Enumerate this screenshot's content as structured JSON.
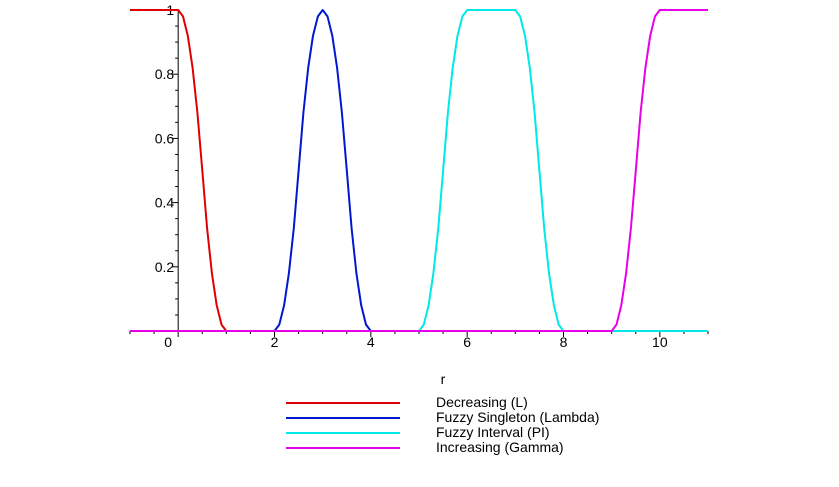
{
  "chart_data": {
    "type": "line",
    "xlabel": "r",
    "ylabel": "",
    "xlim": [
      -1,
      11
    ],
    "ylim": [
      0,
      1
    ],
    "x_ticks": [
      {
        "value": 0,
        "label": "0"
      },
      {
        "value": 2,
        "label": "2"
      },
      {
        "value": 4,
        "label": "4"
      },
      {
        "value": 6,
        "label": "6"
      },
      {
        "value": 8,
        "label": "8"
      },
      {
        "value": 10,
        "label": "10"
      }
    ],
    "y_ticks": [
      {
        "value": 0.2,
        "label": "0.2"
      },
      {
        "value": 0.4,
        "label": "0.4"
      },
      {
        "value": 0.6,
        "label": "0.6"
      },
      {
        "value": 0.8,
        "label": "0.8"
      },
      {
        "value": 1,
        "label": "1"
      }
    ],
    "grid": false,
    "legend_position": "bottom",
    "series": [
      {
        "name": "Decreasing (L)",
        "color": "#e00000",
        "x": [
          -1,
          0,
          0.1,
          0.2,
          0.3,
          0.4,
          0.5,
          0.6,
          0.7,
          0.8,
          0.9,
          1,
          2,
          3,
          4,
          5,
          6,
          7,
          8,
          9,
          10,
          11
        ],
        "y": [
          1,
          1,
          0.98,
          0.92,
          0.82,
          0.68,
          0.5,
          0.32,
          0.18,
          0.08,
          0.02,
          0,
          0,
          0,
          0,
          0,
          0,
          0,
          0,
          0,
          0,
          0
        ]
      },
      {
        "name": "Fuzzy Singleton (Lambda)",
        "color": "#0018d0",
        "x": [
          -1,
          0,
          1,
          2,
          2.1,
          2.2,
          2.3,
          2.4,
          2.5,
          2.6,
          2.7,
          2.8,
          2.9,
          3,
          3.1,
          3.2,
          3.3,
          3.4,
          3.5,
          3.6,
          3.7,
          3.8,
          3.9,
          4,
          5,
          6,
          7,
          8,
          9,
          10,
          11
        ],
        "y": [
          0,
          0,
          0,
          0,
          0.02,
          0.08,
          0.18,
          0.32,
          0.5,
          0.68,
          0.82,
          0.92,
          0.98,
          1,
          0.98,
          0.92,
          0.82,
          0.68,
          0.5,
          0.32,
          0.18,
          0.08,
          0.02,
          0,
          0,
          0,
          0,
          0,
          0,
          0,
          0
        ]
      },
      {
        "name": "Fuzzy Interval (PI)",
        "color": "#00e8e8",
        "x": [
          -1,
          0,
          1,
          2,
          3,
          4,
          5,
          5.1,
          5.2,
          5.3,
          5.4,
          5.5,
          5.6,
          5.7,
          5.8,
          5.9,
          6,
          7,
          7.1,
          7.2,
          7.3,
          7.4,
          7.5,
          7.6,
          7.7,
          7.8,
          7.9,
          8,
          9,
          10,
          11
        ],
        "y": [
          0,
          0,
          0,
          0,
          0,
          0,
          0,
          0.02,
          0.08,
          0.18,
          0.32,
          0.5,
          0.68,
          0.82,
          0.92,
          0.98,
          1,
          1,
          0.98,
          0.92,
          0.82,
          0.68,
          0.5,
          0.32,
          0.18,
          0.08,
          0.02,
          0,
          0,
          0,
          0
        ]
      },
      {
        "name": "Increasing (Gamma)",
        "color": "#e800e8",
        "x": [
          -1,
          0,
          1,
          2,
          3,
          4,
          5,
          6,
          7,
          8,
          9,
          9.1,
          9.2,
          9.3,
          9.4,
          9.5,
          9.6,
          9.7,
          9.8,
          9.9,
          10,
          11
        ],
        "y": [
          0,
          0,
          0,
          0,
          0,
          0,
          0,
          0,
          0,
          0,
          0,
          0.02,
          0.08,
          0.18,
          0.32,
          0.5,
          0.68,
          0.82,
          0.92,
          0.98,
          1,
          1
        ]
      }
    ]
  }
}
